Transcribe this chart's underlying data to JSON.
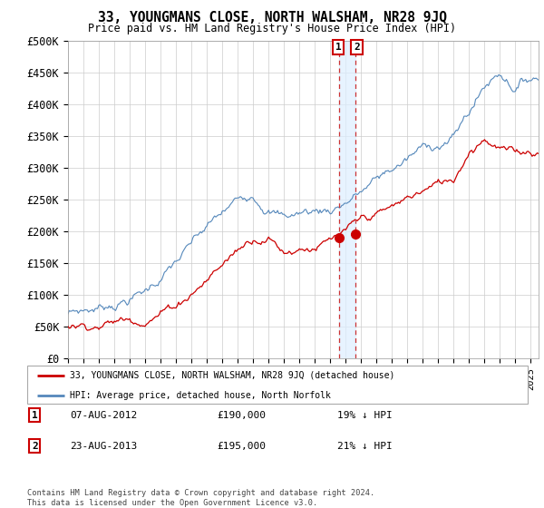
{
  "title": "33, YOUNGMANS CLOSE, NORTH WALSHAM, NR28 9JQ",
  "subtitle": "Price paid vs. HM Land Registry's House Price Index (HPI)",
  "ylabel_ticks": [
    "£0",
    "£50K",
    "£100K",
    "£150K",
    "£200K",
    "£250K",
    "£300K",
    "£350K",
    "£400K",
    "£450K",
    "£500K"
  ],
  "ytick_values": [
    0,
    50000,
    100000,
    150000,
    200000,
    250000,
    300000,
    350000,
    400000,
    450000,
    500000
  ],
  "ylim": [
    0,
    500000
  ],
  "xlim_start": 1995.0,
  "xlim_end": 2025.5,
  "hpi_color": "#5588bb",
  "price_color": "#cc0000",
  "marker_color": "#cc0000",
  "vline_color": "#cc3333",
  "shade_color": "#ddeeff",
  "legend1": "33, YOUNGMANS CLOSE, NORTH WALSHAM, NR28 9JQ (detached house)",
  "legend2": "HPI: Average price, detached house, North Norfolk",
  "sale1_date": "07-AUG-2012",
  "sale1_price": "£190,000",
  "sale1_hpi": "19% ↓ HPI",
  "sale1_x": 2012.6,
  "sale1_y": 190000,
  "sale2_date": "23-AUG-2013",
  "sale2_price": "£195,000",
  "sale2_hpi": "21% ↓ HPI",
  "sale2_x": 2013.65,
  "sale2_y": 195000,
  "footer": "Contains HM Land Registry data © Crown copyright and database right 2024.\nThis data is licensed under the Open Government Licence v3.0.",
  "background_color": "#ffffff",
  "grid_color": "#cccccc"
}
